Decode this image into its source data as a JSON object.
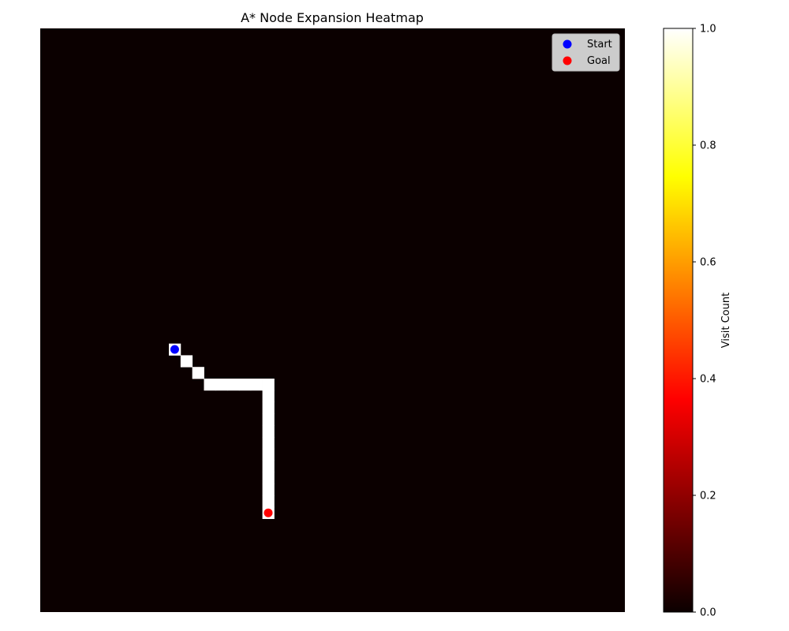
{
  "chart_data": {
    "type": "heatmap",
    "title": "A* Node Expansion Heatmap",
    "grid": {
      "rows": 50,
      "cols": 50
    },
    "colormap": "hot",
    "axes_visible": false,
    "default_value": 0.0,
    "expanded_cells": [
      {
        "row": 27,
        "col": 11,
        "value": 1.0
      },
      {
        "row": 28,
        "col": 12,
        "value": 1.0
      },
      {
        "row": 29,
        "col": 13,
        "value": 1.0
      },
      {
        "row": 30,
        "col": 14,
        "value": 1.0
      },
      {
        "row": 30,
        "col": 15,
        "value": 1.0
      },
      {
        "row": 30,
        "col": 16,
        "value": 1.0
      },
      {
        "row": 30,
        "col": 17,
        "value": 1.0
      },
      {
        "row": 30,
        "col": 18,
        "value": 1.0
      },
      {
        "row": 30,
        "col": 19,
        "value": 1.0
      },
      {
        "row": 31,
        "col": 19,
        "value": 1.0
      },
      {
        "row": 32,
        "col": 19,
        "value": 1.0
      },
      {
        "row": 33,
        "col": 19,
        "value": 1.0
      },
      {
        "row": 34,
        "col": 19,
        "value": 1.0
      },
      {
        "row": 35,
        "col": 19,
        "value": 1.0
      },
      {
        "row": 36,
        "col": 19,
        "value": 1.0
      },
      {
        "row": 37,
        "col": 19,
        "value": 1.0
      },
      {
        "row": 38,
        "col": 19,
        "value": 1.0
      },
      {
        "row": 39,
        "col": 19,
        "value": 1.0
      },
      {
        "row": 40,
        "col": 19,
        "value": 1.0
      },
      {
        "row": 41,
        "col": 19,
        "value": 1.0
      }
    ],
    "markers": [
      {
        "name": "Start",
        "row": 27,
        "col": 11,
        "color": "#0000ff"
      },
      {
        "name": "Goal",
        "row": 41,
        "col": 19,
        "color": "#ff0000"
      }
    ],
    "legend": {
      "location": "upper-right",
      "entries": [
        "Start",
        "Goal"
      ]
    },
    "colorbar": {
      "label": "Visit Count",
      "range": [
        0.0,
        1.0
      ],
      "ticks": [
        "0.0",
        "0.2",
        "0.4",
        "0.6",
        "0.8",
        "1.0"
      ]
    }
  }
}
